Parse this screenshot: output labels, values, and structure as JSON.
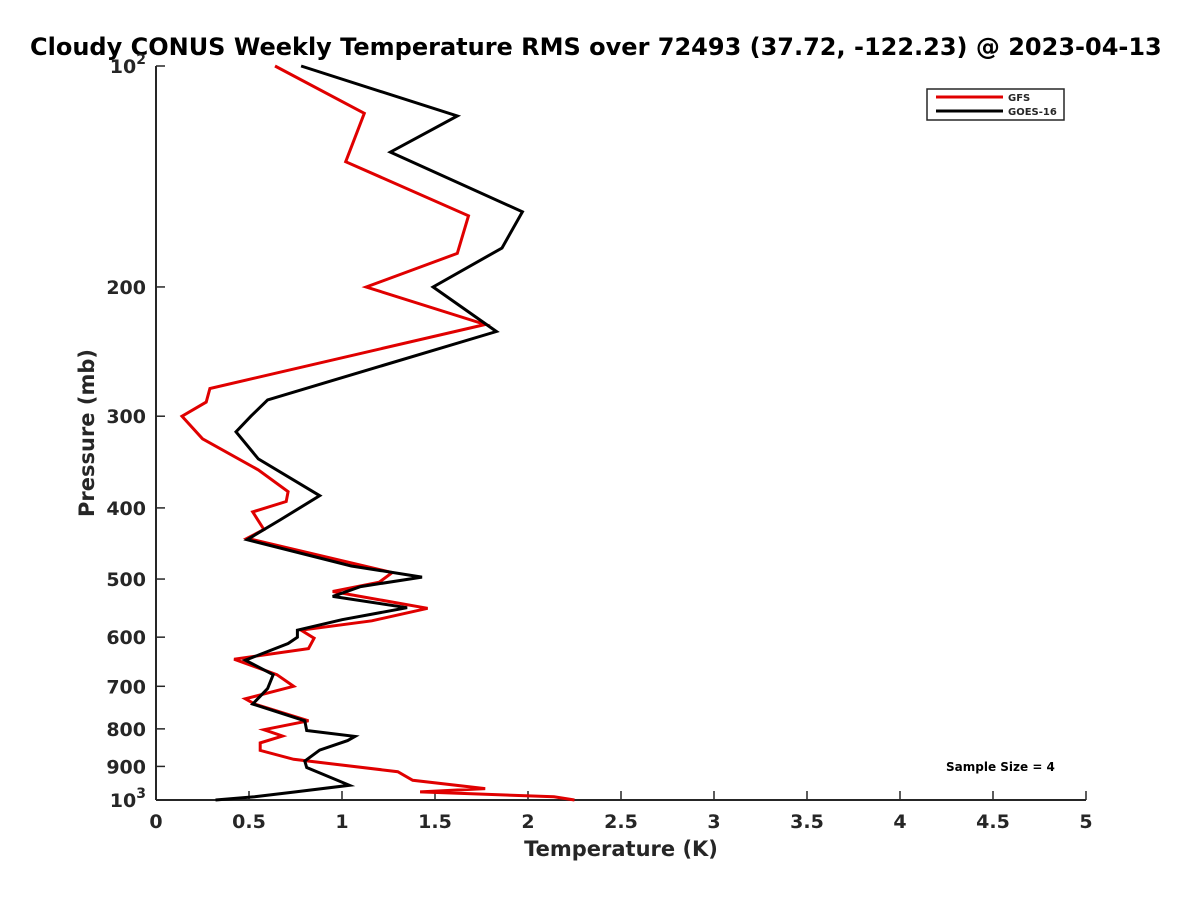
{
  "chart_data": {
    "type": "line",
    "title": "Cloudy CONUS Weekly Temperature RMS over 72493 (37.72, -122.23) @ 2023-04-13",
    "xlabel": "Temperature (K)",
    "ylabel": "Pressure (mb)",
    "xlim": [
      0,
      5
    ],
    "ylim": [
      100,
      1000
    ],
    "y_scale": "log",
    "y_reversed": true,
    "grid": false,
    "legend_position": "top-right",
    "x_ticks": [
      "0",
      "0.5",
      "1",
      "1.5",
      "2",
      "2.5",
      "3",
      "3.5",
      "4",
      "4.5",
      "5"
    ],
    "y_ticks": [
      {
        "value": 100,
        "base": "10",
        "exp": "2"
      },
      {
        "value": 200,
        "label": "200"
      },
      {
        "value": 300,
        "label": "300"
      },
      {
        "value": 400,
        "label": "400"
      },
      {
        "value": 500,
        "label": "500"
      },
      {
        "value": 600,
        "label": "600"
      },
      {
        "value": 700,
        "label": "700"
      },
      {
        "value": 800,
        "label": "800"
      },
      {
        "value": 900,
        "label": "900"
      },
      {
        "value": 1000,
        "base": "10",
        "exp": "3"
      }
    ],
    "annotation": "Sample Size = 4",
    "series": [
      {
        "name": "GFS",
        "color": "#e00000",
        "points": [
          [
            0.64,
            100
          ],
          [
            1.12,
            116
          ],
          [
            1.02,
            135
          ],
          [
            1.68,
            160
          ],
          [
            1.62,
            180
          ],
          [
            1.13,
            200
          ],
          [
            1.77,
            225
          ],
          [
            0.29,
            275
          ],
          [
            0.27,
            287
          ],
          [
            0.14,
            300
          ],
          [
            0.25,
            322
          ],
          [
            0.55,
            355
          ],
          [
            0.71,
            380
          ],
          [
            0.7,
            392
          ],
          [
            0.52,
            405
          ],
          [
            0.58,
            428
          ],
          [
            0.49,
            440
          ],
          [
            1.27,
            490
          ],
          [
            1.2,
            505
          ],
          [
            0.95,
            520
          ],
          [
            1.46,
            548
          ],
          [
            1.16,
            570
          ],
          [
            0.78,
            587
          ],
          [
            0.85,
            602
          ],
          [
            0.82,
            622
          ],
          [
            0.42,
            643
          ],
          [
            0.65,
            675
          ],
          [
            0.74,
            700
          ],
          [
            0.48,
            728
          ],
          [
            0.53,
            740
          ],
          [
            0.82,
            780
          ],
          [
            0.58,
            802
          ],
          [
            0.68,
            818
          ],
          [
            0.56,
            836
          ],
          [
            0.56,
            856
          ],
          [
            0.74,
            880
          ],
          [
            1.3,
            915
          ],
          [
            1.38,
            940
          ],
          [
            1.77,
            965
          ],
          [
            1.42,
            975
          ],
          [
            2.14,
            990
          ],
          [
            2.25,
            1000
          ]
        ]
      },
      {
        "name": "GOES-16",
        "color": "#000000",
        "points": [
          [
            0.78,
            100
          ],
          [
            1.62,
            117
          ],
          [
            1.26,
            131
          ],
          [
            1.97,
            158
          ],
          [
            1.86,
            177
          ],
          [
            1.49,
            200
          ],
          [
            1.83,
            230
          ],
          [
            0.6,
            285
          ],
          [
            0.51,
            300
          ],
          [
            0.43,
            315
          ],
          [
            0.55,
            343
          ],
          [
            0.88,
            385
          ],
          [
            0.67,
            415
          ],
          [
            0.49,
            442
          ],
          [
            1.05,
            480
          ],
          [
            1.43,
            497
          ],
          [
            1.1,
            512
          ],
          [
            0.95,
            528
          ],
          [
            1.35,
            547
          ],
          [
            1.0,
            568
          ],
          [
            0.76,
            587
          ],
          [
            0.76,
            600
          ],
          [
            0.71,
            612
          ],
          [
            0.48,
            645
          ],
          [
            0.63,
            675
          ],
          [
            0.6,
            705
          ],
          [
            0.52,
            740
          ],
          [
            0.8,
            780
          ],
          [
            0.81,
            804
          ],
          [
            1.07,
            819
          ],
          [
            1.03,
            830
          ],
          [
            0.88,
            855
          ],
          [
            0.8,
            885
          ],
          [
            0.81,
            903
          ],
          [
            1.04,
            955
          ],
          [
            0.75,
            975
          ],
          [
            0.53,
            990
          ],
          [
            0.32,
            1000
          ]
        ]
      }
    ]
  }
}
